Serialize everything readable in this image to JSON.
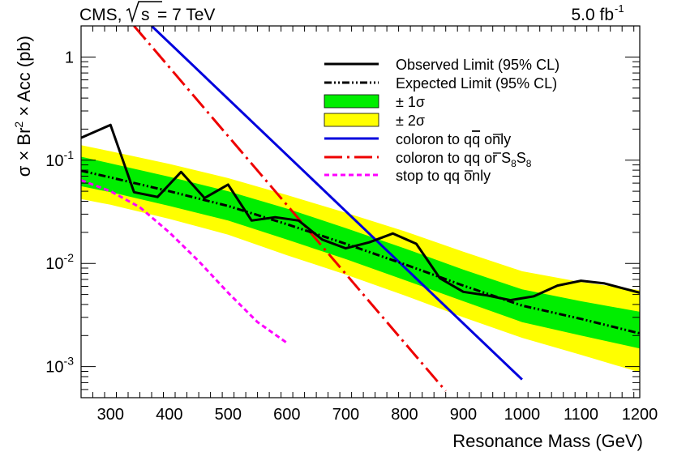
{
  "chart_data": {
    "type": "line",
    "title_left": "CMS, \\sqrt{s} = 7 TeV",
    "title_left_parts": {
      "experiment": "CMS,",
      "sqrt_arg": "s",
      "energy": "= 7 TeV"
    },
    "title_right": "5.0 fb^-1",
    "title_right_parts": {
      "value": "5.0 fb",
      "exponent": "-1"
    },
    "xlabel": "Resonance Mass (GeV)",
    "ylabel": "σ × Br² × Acc (pb)",
    "ylabel_parts": {
      "main": "σ × Br",
      "sup": "2",
      "rest": " × Acc (pb)"
    },
    "xlim": [
      250,
      1200
    ],
    "ylim": [
      0.0005,
      2.0
    ],
    "yscale": "log",
    "x_ticks": [
      300,
      400,
      500,
      600,
      700,
      800,
      900,
      1000,
      1100,
      1200
    ],
    "y_ticks": [
      {
        "value": 1,
        "base": "1",
        "exp": ""
      },
      {
        "value": 0.1,
        "base": "10",
        "exp": "-1"
      },
      {
        "value": 0.01,
        "base": "10",
        "exp": "-2"
      },
      {
        "value": 0.001,
        "base": "10",
        "exp": "-3"
      }
    ],
    "legend": {
      "position": "top-right",
      "entries": [
        {
          "key": "observed",
          "label": "Observed Limit (95% CL)"
        },
        {
          "key": "expected",
          "label": "Expected Limit (95% CL)"
        },
        {
          "key": "band1",
          "label": "± 1σ"
        },
        {
          "key": "band2",
          "label": "± 2σ"
        },
        {
          "key": "coloron",
          "label_main": "coloron to q",
          "label_bar": "q",
          "label_tail": " only"
        },
        {
          "key": "coloron_s8",
          "label_main": "coloron to q",
          "label_bar": "q",
          "label_mid": " or S",
          "label_sub1": "8",
          "label_s2": "S",
          "label_sub2": "8"
        },
        {
          "key": "stop",
          "label_main": "stop to q",
          "label_bar": "q",
          "label_tail": " only"
        }
      ]
    },
    "series": [
      {
        "name": "Observed Limit (95% CL)",
        "key": "observed",
        "color": "#000000",
        "style": "solid",
        "x": [
          250,
          300,
          340,
          380,
          420,
          460,
          500,
          540,
          580,
          620,
          660,
          700,
          740,
          780,
          820,
          860,
          900,
          940,
          980,
          1020,
          1060,
          1100,
          1140,
          1200
        ],
        "y": [
          0.165,
          0.22,
          0.049,
          0.044,
          0.077,
          0.043,
          0.058,
          0.026,
          0.028,
          0.026,
          0.017,
          0.014,
          0.016,
          0.0195,
          0.0155,
          0.0072,
          0.0053,
          0.0049,
          0.0044,
          0.0048,
          0.0061,
          0.0068,
          0.0064,
          0.0052
        ]
      },
      {
        "name": "Expected Limit (95% CL)",
        "key": "expected",
        "color": "#000000",
        "style": "dashdot",
        "x": [
          250,
          300,
          400,
          500,
          600,
          700,
          800,
          900,
          1000,
          1100,
          1200
        ],
        "y": [
          0.079,
          0.068,
          0.05,
          0.036,
          0.024,
          0.0155,
          0.0098,
          0.0061,
          0.0039,
          0.0029,
          0.0021
        ]
      },
      {
        "name": "± 1σ",
        "key": "band1",
        "color": "#00ee00",
        "style": "band",
        "x": [
          250,
          300,
          400,
          500,
          600,
          700,
          800,
          900,
          1000,
          1100,
          1200
        ],
        "low": [
          0.056,
          0.049,
          0.036,
          0.026,
          0.017,
          0.011,
          0.0069,
          0.0043,
          0.0027,
          0.002,
          0.0015
        ],
        "high": [
          0.108,
          0.093,
          0.069,
          0.05,
          0.034,
          0.022,
          0.014,
          0.0087,
          0.0056,
          0.0043,
          0.0034
        ]
      },
      {
        "name": "± 2σ",
        "key": "band2",
        "color": "#ffff00",
        "style": "band",
        "x": [
          250,
          300,
          400,
          500,
          600,
          700,
          800,
          900,
          1000,
          1100,
          1200
        ],
        "low": [
          0.042,
          0.037,
          0.027,
          0.019,
          0.012,
          0.0078,
          0.0049,
          0.003,
          0.0019,
          0.0013,
          0.00088
        ],
        "high": [
          0.14,
          0.122,
          0.092,
          0.067,
          0.046,
          0.031,
          0.0205,
          0.013,
          0.0084,
          0.0066,
          0.0055
        ]
      },
      {
        "name": "coloron to qq only",
        "key": "coloron",
        "color": "#0000dd",
        "style": "solid",
        "x": [
          370,
          1000
        ],
        "y": [
          2.0,
          0.00075
        ]
      },
      {
        "name": "coloron to qq or S8S8",
        "key": "coloron_s8",
        "color": "#ee0000",
        "style": "longdashdot",
        "x": [
          340,
          870
        ],
        "y": [
          2.0,
          0.00058
        ]
      },
      {
        "name": "stop to qq only",
        "key": "stop",
        "color": "#ff00ff",
        "style": "dashed",
        "x": [
          250,
          300,
          350,
          400,
          450,
          500,
          550,
          600
        ],
        "y": [
          0.064,
          0.05,
          0.035,
          0.02,
          0.0105,
          0.0052,
          0.0027,
          0.0017
        ]
      }
    ]
  }
}
